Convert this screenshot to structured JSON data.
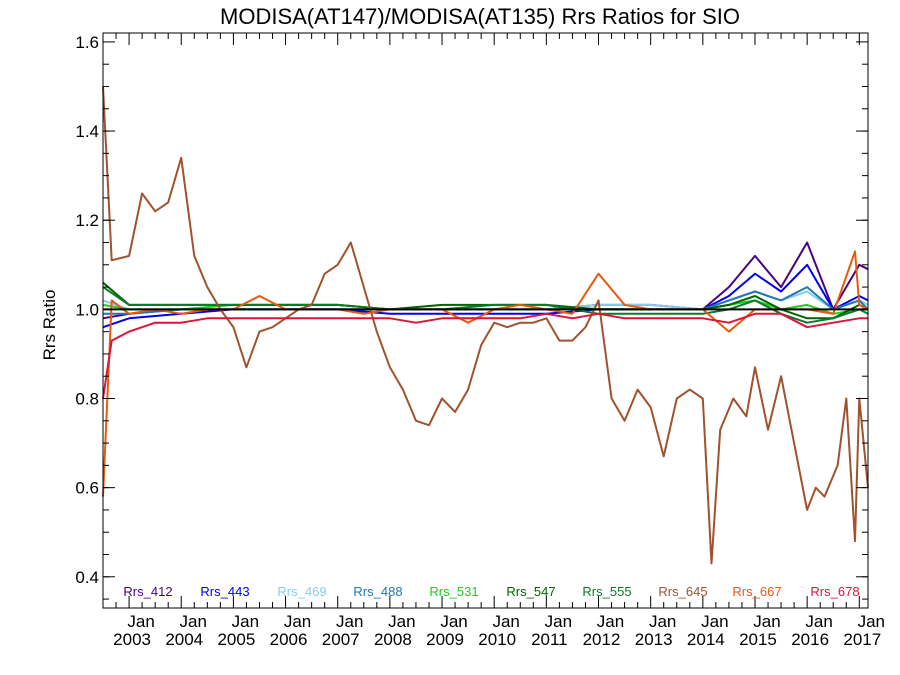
{
  "chart_data": {
    "type": "line",
    "title": "MODISA(AT147)/MODISA(AT135)  Rrs Ratios for SIO",
    "xlabel": "",
    "ylabel": "Rrs Ratio",
    "xlim": [
      "2002-07",
      "2017-03"
    ],
    "ylim": [
      0.33,
      1.62
    ],
    "yticks": [
      "0.4",
      "0.6",
      "0.8",
      "1.0",
      "1.2",
      "1.4",
      "1.6"
    ],
    "xticks": [
      {
        "top": "Jan",
        "bottom": "2003",
        "date": "2003-01"
      },
      {
        "top": "Jan",
        "bottom": "2004",
        "date": "2004-01"
      },
      {
        "top": "Jan",
        "bottom": "2005",
        "date": "2005-01"
      },
      {
        "top": "Jan",
        "bottom": "2006",
        "date": "2006-01"
      },
      {
        "top": "Jan",
        "bottom": "2007",
        "date": "2007-01"
      },
      {
        "top": "Jan",
        "bottom": "2008",
        "date": "2008-01"
      },
      {
        "top": "Jan",
        "bottom": "2009",
        "date": "2009-01"
      },
      {
        "top": "Jan",
        "bottom": "2010",
        "date": "2010-01"
      },
      {
        "top": "Jan",
        "bottom": "2011",
        "date": "2011-01"
      },
      {
        "top": "Jan",
        "bottom": "2012",
        "date": "2012-01"
      },
      {
        "top": "Jan",
        "bottom": "2013",
        "date": "2013-01"
      },
      {
        "top": "Jan",
        "bottom": "2014",
        "date": "2014-01"
      },
      {
        "top": "Jan",
        "bottom": "2015",
        "date": "2015-01"
      },
      {
        "top": "Jan",
        "bottom": "2016",
        "date": "2016-01"
      },
      {
        "top": "Jan",
        "bottom": "2017",
        "date": "2017-01"
      }
    ],
    "reference_line": 1.0,
    "grid": false,
    "legend_position": "bottom-inside",
    "series": [
      {
        "name": "Rrs_412",
        "color": "#4b0082",
        "x": [
          "2002-07",
          "2003-01",
          "2004-01",
          "2005-01",
          "2006-01",
          "2007-01",
          "2008-01",
          "2009-01",
          "2010-01",
          "2011-01",
          "2012-01",
          "2013-01",
          "2014-01",
          "2014-07",
          "2015-01",
          "2015-07",
          "2016-01",
          "2016-07",
          "2017-01",
          "2017-03"
        ],
        "y": [
          0.98,
          0.99,
          1.0,
          1.0,
          1.0,
          1.0,
          1.0,
          1.0,
          1.0,
          1.0,
          1.01,
          1.01,
          1.0,
          1.05,
          1.12,
          1.05,
          1.15,
          1.0,
          1.1,
          1.09
        ]
      },
      {
        "name": "Rrs_443",
        "color": "#0000ee",
        "x": [
          "2002-07",
          "2003-01",
          "2004-01",
          "2005-01",
          "2006-01",
          "2007-01",
          "2008-01",
          "2009-01",
          "2010-01",
          "2011-01",
          "2012-01",
          "2013-01",
          "2014-01",
          "2014-07",
          "2015-01",
          "2015-07",
          "2016-01",
          "2016-07",
          "2017-01",
          "2017-03"
        ],
        "y": [
          0.96,
          0.98,
          0.99,
          1.0,
          1.0,
          1.0,
          0.99,
          0.99,
          0.99,
          0.99,
          1.0,
          1.0,
          1.0,
          1.03,
          1.08,
          1.04,
          1.1,
          1.0,
          1.03,
          1.02
        ]
      },
      {
        "name": "Rrs_469",
        "color": "#87ceeb",
        "x": [
          "2002-07",
          "2003-01",
          "2004-01",
          "2005-01",
          "2006-01",
          "2007-01",
          "2008-01",
          "2009-01",
          "2010-01",
          "2011-01",
          "2012-01",
          "2013-01",
          "2014-01",
          "2014-07",
          "2015-01",
          "2015-07",
          "2016-01",
          "2016-07",
          "2017-01",
          "2017-03"
        ],
        "y": [
          1.02,
          1.0,
          1.0,
          1.0,
          1.0,
          1.0,
          1.0,
          1.0,
          1.0,
          1.0,
          1.01,
          1.01,
          1.0,
          1.02,
          1.04,
          1.02,
          1.04,
          1.0,
          1.02,
          1.01
        ]
      },
      {
        "name": "Rrs_488",
        "color": "#1f77b4",
        "x": [
          "2002-07",
          "2003-01",
          "2004-01",
          "2005-01",
          "2006-01",
          "2007-01",
          "2008-01",
          "2009-01",
          "2010-01",
          "2011-01",
          "2012-01",
          "2013-01",
          "2014-01",
          "2014-07",
          "2015-01",
          "2015-07",
          "2016-01",
          "2016-07",
          "2017-01",
          "2017-03"
        ],
        "y": [
          0.99,
          0.99,
          1.0,
          1.0,
          1.0,
          1.0,
          1.0,
          1.0,
          1.0,
          1.0,
          1.0,
          1.0,
          1.0,
          1.02,
          1.04,
          1.02,
          1.05,
          1.0,
          1.02,
          1.0
        ]
      },
      {
        "name": "Rrs_531",
        "color": "#22cc22",
        "x": [
          "2002-07",
          "2003-01",
          "2004-01",
          "2005-01",
          "2006-01",
          "2007-01",
          "2008-01",
          "2009-01",
          "2010-01",
          "2011-01",
          "2012-01",
          "2013-01",
          "2014-01",
          "2014-07",
          "2015-01",
          "2015-07",
          "2016-01",
          "2016-07",
          "2017-01",
          "2017-03"
        ],
        "y": [
          1.01,
          1.0,
          1.0,
          1.01,
          1.01,
          1.01,
          1.0,
          1.0,
          1.0,
          1.0,
          1.0,
          1.0,
          1.0,
          1.01,
          1.02,
          1.0,
          1.01,
          0.99,
          1.0,
          1.0
        ]
      },
      {
        "name": "Rrs_547",
        "color": "#006400",
        "x": [
          "2002-07",
          "2003-01",
          "2004-01",
          "2005-01",
          "2006-01",
          "2007-01",
          "2008-01",
          "2009-01",
          "2010-01",
          "2011-01",
          "2012-01",
          "2013-01",
          "2014-01",
          "2014-07",
          "2015-01",
          "2015-07",
          "2016-01",
          "2016-07",
          "2017-01",
          "2017-03"
        ],
        "y": [
          1.06,
          1.01,
          1.01,
          1.01,
          1.01,
          1.01,
          1.0,
          1.01,
          1.01,
          1.01,
          1.0,
          1.0,
          1.0,
          1.01,
          1.03,
          1.0,
          0.98,
          0.98,
          1.01,
          1.0
        ]
      },
      {
        "name": "Rrs_555",
        "color": "#0a7a2a",
        "x": [
          "2002-07",
          "2003-01",
          "2004-01",
          "2005-01",
          "2006-01",
          "2007-01",
          "2008-01",
          "2009-01",
          "2010-01",
          "2011-01",
          "2012-01",
          "2013-01",
          "2014-01",
          "2014-07",
          "2015-01",
          "2015-07",
          "2016-01",
          "2016-07",
          "2017-01",
          "2017-03"
        ],
        "y": [
          1.05,
          1.01,
          1.01,
          1.01,
          1.01,
          1.01,
          1.0,
          1.0,
          1.01,
          1.01,
          0.99,
          0.99,
          0.99,
          1.0,
          1.02,
          0.99,
          0.97,
          0.98,
          1.0,
          0.99
        ]
      },
      {
        "name": "Rrs_645",
        "color": "#a0522d",
        "x": [
          "2002-07",
          "2002-09",
          "2003-01",
          "2003-04",
          "2003-07",
          "2003-10",
          "2004-01",
          "2004-04",
          "2004-07",
          "2004-10",
          "2005-01",
          "2005-04",
          "2005-07",
          "2005-10",
          "2006-01",
          "2006-04",
          "2006-07",
          "2006-10",
          "2007-01",
          "2007-04",
          "2007-07",
          "2007-10",
          "2008-01",
          "2008-04",
          "2008-07",
          "2008-10",
          "2009-01",
          "2009-04",
          "2009-07",
          "2009-10",
          "2010-01",
          "2010-04",
          "2010-07",
          "2010-10",
          "2011-01",
          "2011-04",
          "2011-07",
          "2011-10",
          "2012-01",
          "2012-04",
          "2012-07",
          "2012-10",
          "2013-01",
          "2013-04",
          "2013-07",
          "2013-10",
          "2014-01",
          "2014-03",
          "2014-05",
          "2014-08",
          "2014-11",
          "2015-01",
          "2015-04",
          "2015-07",
          "2015-10",
          "2016-01",
          "2016-03",
          "2016-05",
          "2016-08",
          "2016-10",
          "2016-12",
          "2017-01",
          "2017-03"
        ],
        "y": [
          1.5,
          1.11,
          1.12,
          1.26,
          1.22,
          1.24,
          1.34,
          1.12,
          1.05,
          1.0,
          0.96,
          0.87,
          0.95,
          0.96,
          0.98,
          1.0,
          1.01,
          1.08,
          1.1,
          1.15,
          1.05,
          0.95,
          0.87,
          0.82,
          0.75,
          0.74,
          0.8,
          0.77,
          0.82,
          0.92,
          0.97,
          0.96,
          0.97,
          0.97,
          0.98,
          0.93,
          0.93,
          0.96,
          1.02,
          0.8,
          0.75,
          0.82,
          0.78,
          0.67,
          0.8,
          0.82,
          0.8,
          0.43,
          0.73,
          0.8,
          0.76,
          0.87,
          0.73,
          0.85,
          0.7,
          0.55,
          0.6,
          0.58,
          0.65,
          0.8,
          0.48,
          0.8,
          0.6
        ]
      },
      {
        "name": "Rrs_667",
        "color": "#e8590c",
        "x": [
          "2002-07",
          "2002-09",
          "2003-01",
          "2003-07",
          "2004-01",
          "2004-07",
          "2005-01",
          "2005-07",
          "2006-01",
          "2006-07",
          "2007-01",
          "2007-07",
          "2008-01",
          "2008-07",
          "2009-01",
          "2009-07",
          "2010-01",
          "2010-07",
          "2011-01",
          "2011-07",
          "2012-01",
          "2012-07",
          "2013-01",
          "2013-07",
          "2014-01",
          "2014-07",
          "2015-01",
          "2015-07",
          "2016-01",
          "2016-07",
          "2016-12",
          "2017-01",
          "2017-03"
        ],
        "y": [
          0.58,
          1.02,
          0.99,
          1.0,
          0.99,
          1.0,
          1.0,
          1.03,
          1.0,
          1.0,
          1.0,
          0.99,
          1.0,
          1.0,
          1.0,
          0.97,
          1.0,
          1.01,
          1.0,
          0.99,
          1.08,
          1.01,
          1.0,
          1.0,
          1.0,
          0.95,
          1.0,
          1.0,
          1.0,
          0.99,
          1.13,
          1.01,
          1.0
        ]
      },
      {
        "name": "Rrs_678",
        "color": "#dc143c",
        "x": [
          "2002-07",
          "2002-09",
          "2003-01",
          "2003-07",
          "2004-01",
          "2004-07",
          "2005-01",
          "2005-07",
          "2006-01",
          "2006-07",
          "2007-01",
          "2007-07",
          "2008-01",
          "2008-07",
          "2009-01",
          "2009-07",
          "2010-01",
          "2010-07",
          "2011-01",
          "2011-07",
          "2012-01",
          "2012-07",
          "2013-01",
          "2013-07",
          "2014-01",
          "2014-07",
          "2015-01",
          "2015-07",
          "2016-01",
          "2016-07",
          "2017-01",
          "2017-03"
        ],
        "y": [
          0.8,
          0.93,
          0.95,
          0.97,
          0.97,
          0.98,
          0.98,
          0.98,
          0.98,
          0.98,
          0.98,
          0.98,
          0.98,
          0.97,
          0.98,
          0.98,
          0.98,
          0.98,
          0.99,
          0.98,
          0.99,
          0.98,
          0.98,
          0.98,
          0.98,
          0.97,
          0.99,
          0.99,
          0.96,
          0.97,
          0.98,
          0.98
        ]
      }
    ]
  }
}
